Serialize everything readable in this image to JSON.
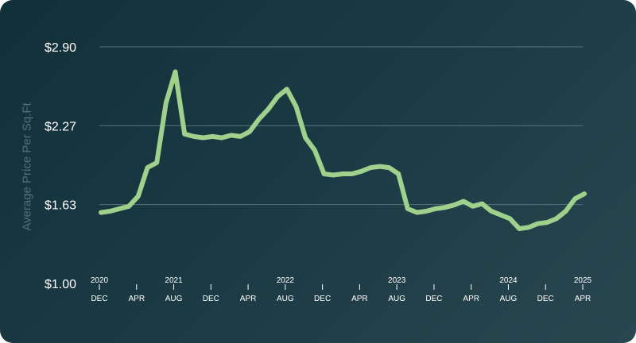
{
  "chart_data": {
    "type": "line",
    "title": "",
    "xlabel": "",
    "ylabel": "Average Price Per Sq.Ft",
    "ylim": [
      1.0,
      2.9
    ],
    "y_ticks": [
      "$1.00",
      "$1.63",
      "$2.27",
      "$2.90"
    ],
    "x_ticks": [
      {
        "month": "DEC",
        "year": "2020"
      },
      {
        "month": "APR",
        "year": ""
      },
      {
        "month": "AUG",
        "year": "2021"
      },
      {
        "month": "DEC",
        "year": ""
      },
      {
        "month": "APR",
        "year": ""
      },
      {
        "month": "AUG",
        "year": "2022"
      },
      {
        "month": "DEC",
        "year": ""
      },
      {
        "month": "APR",
        "year": ""
      },
      {
        "month": "AUG",
        "year": "2023"
      },
      {
        "month": "DEC",
        "year": ""
      },
      {
        "month": "APR",
        "year": ""
      },
      {
        "month": "AUG",
        "year": "2024"
      },
      {
        "month": "DEC",
        "year": ""
      },
      {
        "month": "APR",
        "year": "2025"
      }
    ],
    "grid": true,
    "line_color": "#9fd08c",
    "series": [
      {
        "x": [
          "2020-12",
          "2021-01",
          "2021-02",
          "2021-03",
          "2021-04",
          "2021-05",
          "2021-06",
          "2021-07",
          "2021-08",
          "2021-09",
          "2021-10",
          "2021-11",
          "2021-12",
          "2022-01",
          "2022-02",
          "2022-03",
          "2022-04",
          "2022-05",
          "2022-06",
          "2022-07",
          "2022-08",
          "2022-09",
          "2022-10",
          "2022-11",
          "2022-12",
          "2023-01",
          "2023-02",
          "2023-03",
          "2023-04",
          "2023-05",
          "2023-06",
          "2023-07",
          "2023-08",
          "2023-09",
          "2023-10",
          "2023-11",
          "2023-12",
          "2024-01",
          "2024-02",
          "2024-03",
          "2024-04",
          "2024-05",
          "2024-06",
          "2024-07",
          "2024-08",
          "2024-09",
          "2024-10",
          "2024-11",
          "2024-12",
          "2025-01",
          "2025-02",
          "2025-03",
          "2025-04"
        ],
        "values": [
          1.57,
          1.58,
          1.6,
          1.62,
          1.7,
          1.93,
          1.97,
          2.45,
          2.7,
          2.2,
          2.18,
          2.17,
          2.18,
          2.17,
          2.19,
          2.18,
          2.22,
          2.32,
          2.4,
          2.5,
          2.56,
          2.42,
          2.17,
          2.07,
          1.88,
          1.87,
          1.88,
          1.88,
          1.9,
          1.93,
          1.94,
          1.93,
          1.88,
          1.6,
          1.57,
          1.58,
          1.6,
          1.61,
          1.63,
          1.66,
          1.62,
          1.64,
          1.58,
          1.55,
          1.52,
          1.44,
          1.45,
          1.48,
          1.49,
          1.52,
          1.58,
          1.68,
          1.72
        ]
      }
    ]
  }
}
